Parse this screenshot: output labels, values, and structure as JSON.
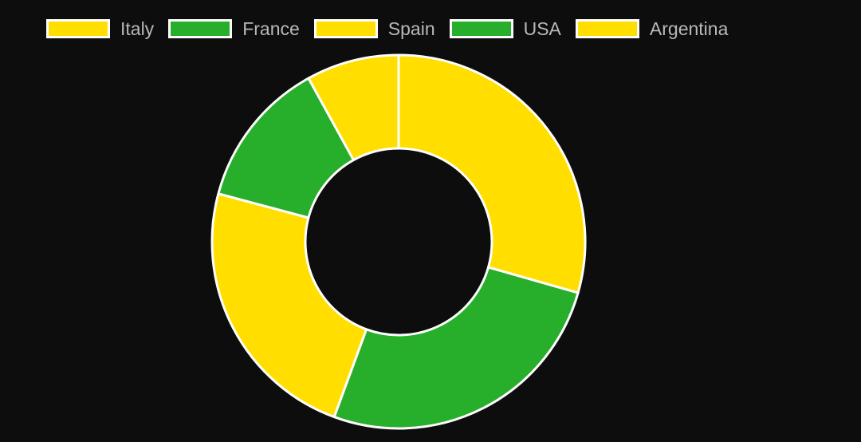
{
  "chart_data": {
    "type": "doughnut",
    "labels": [
      "Italy",
      "France",
      "Spain",
      "USA",
      "Argentina"
    ],
    "values": [
      55,
      49,
      44,
      24,
      15
    ],
    "colors": [
      "#ffde00",
      "#27ae2b",
      "#ffde00",
      "#27ae2b",
      "#ffde00"
    ],
    "border_color": "#ffffff",
    "legend_position": "top",
    "background": "#0d0d0d"
  }
}
